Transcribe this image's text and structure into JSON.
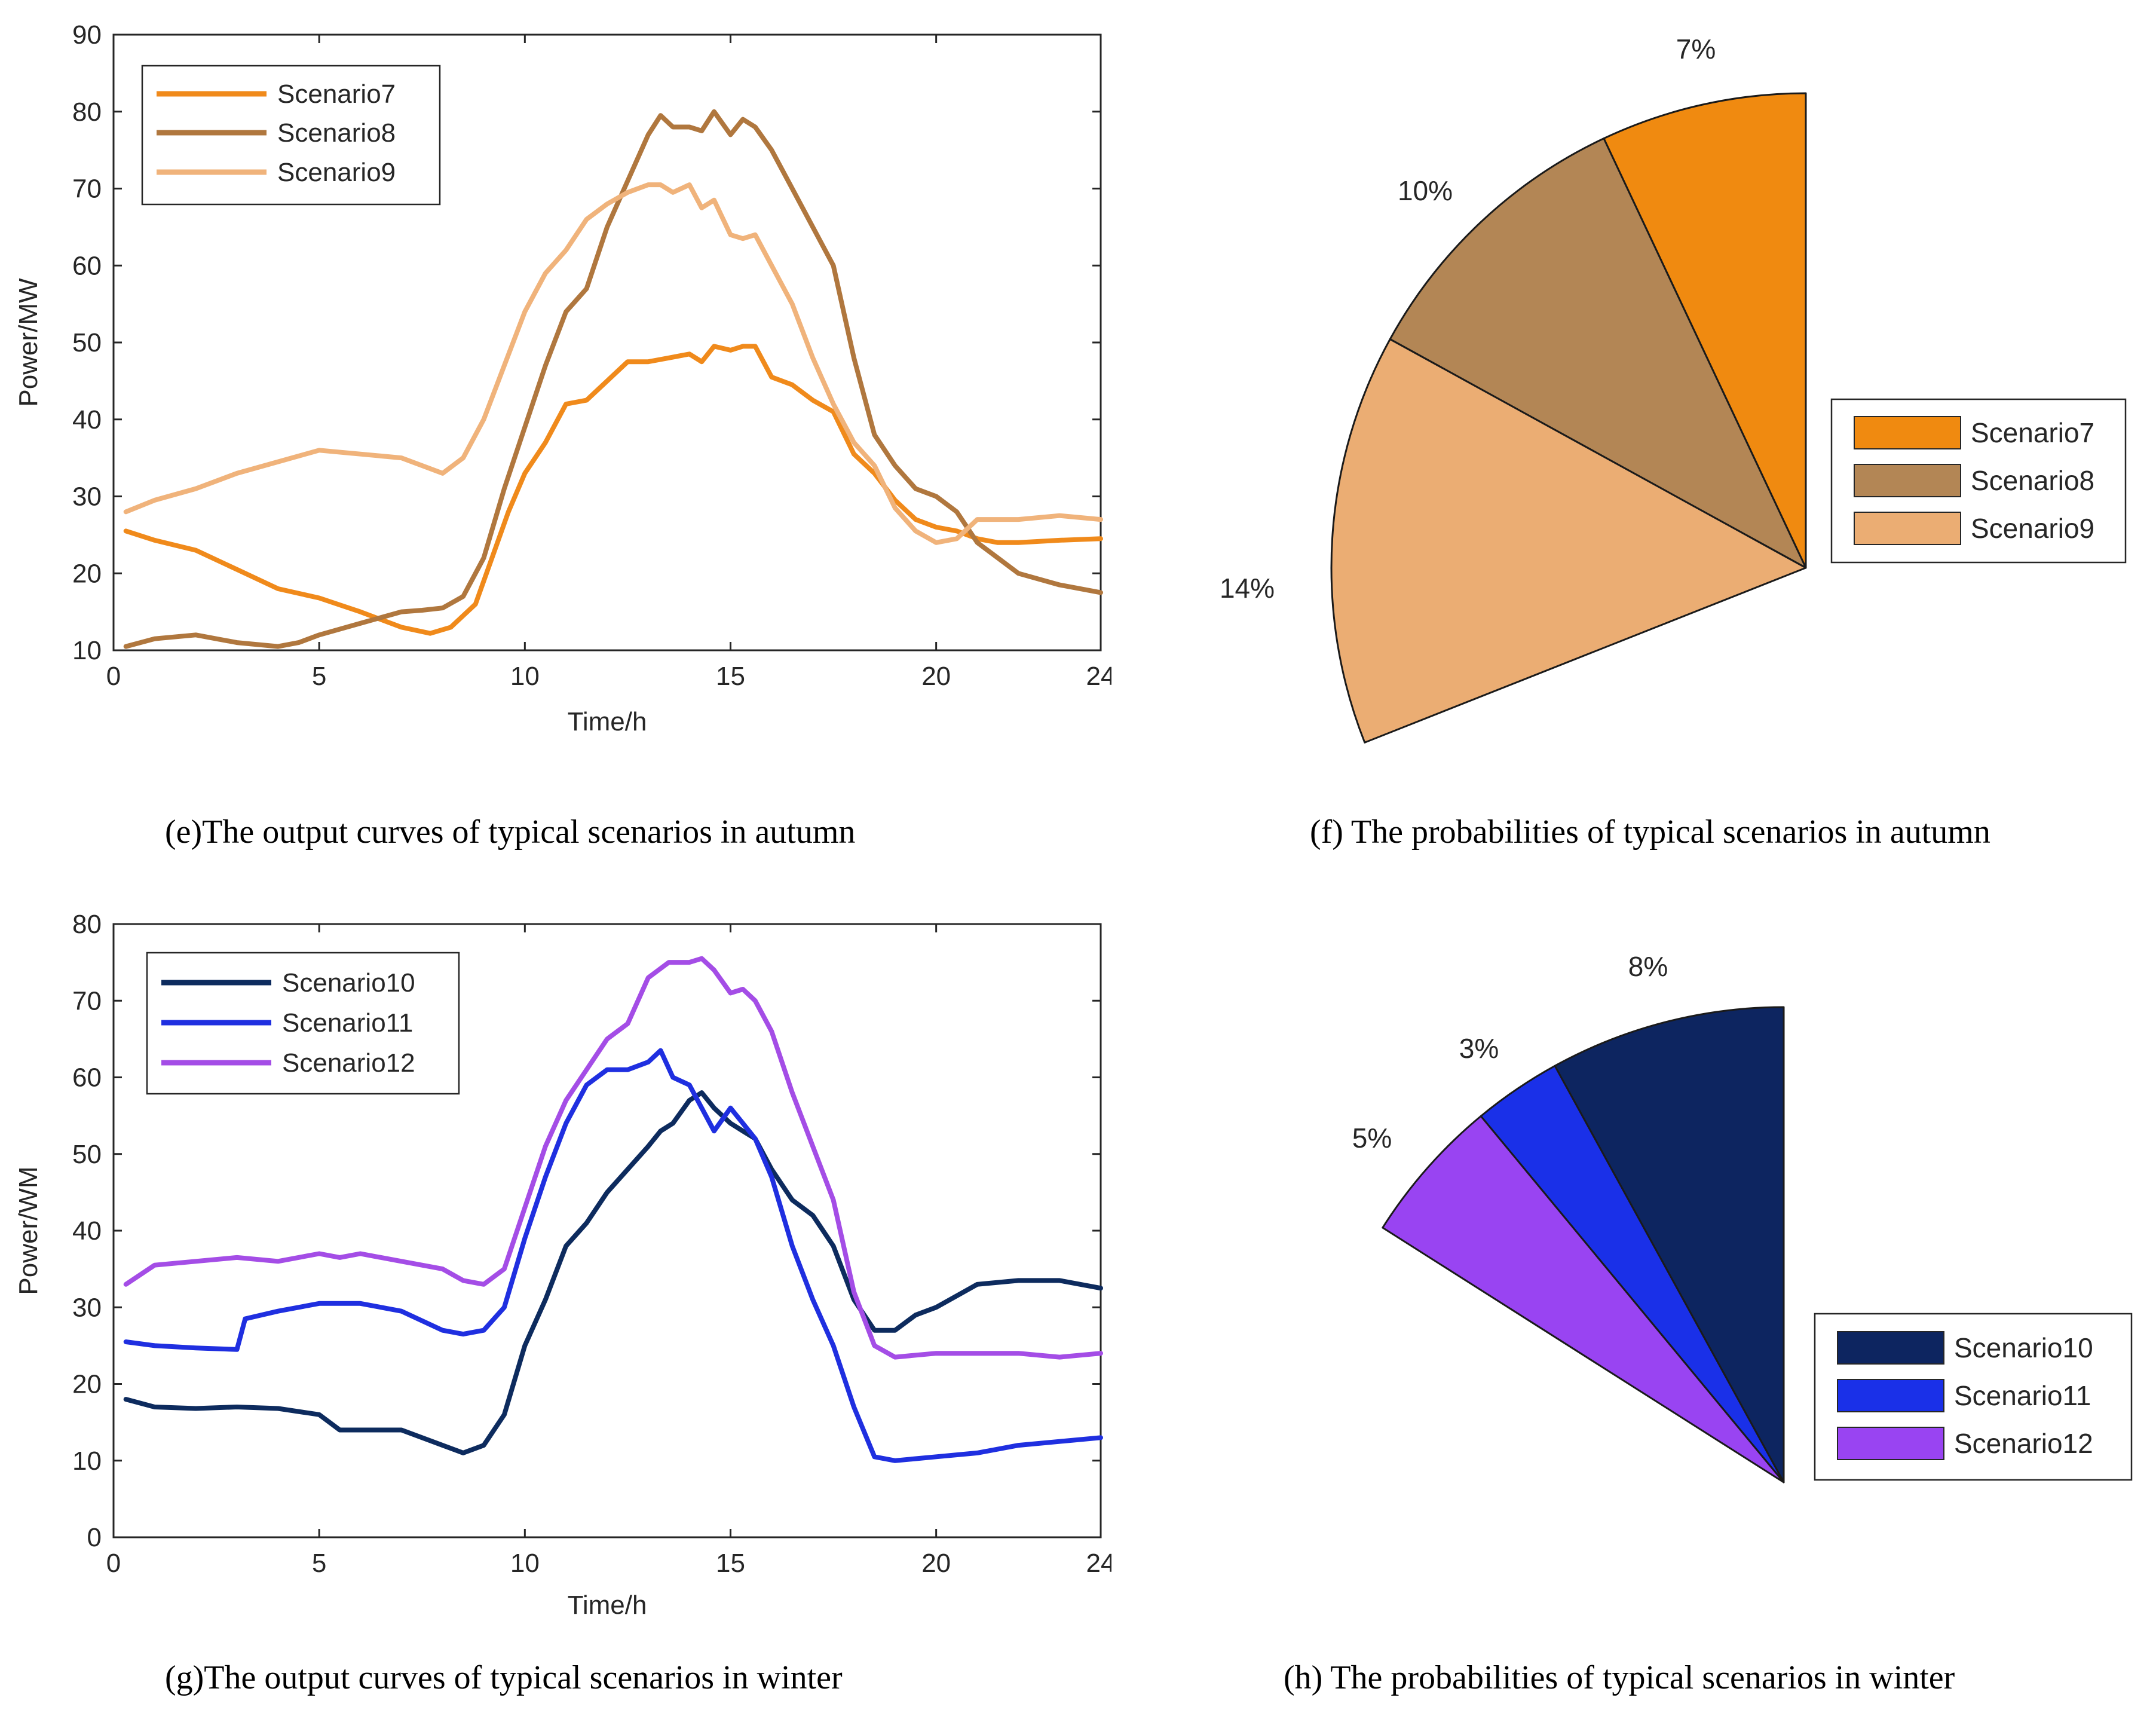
{
  "chart_data": [
    {
      "id": "e",
      "type": "line",
      "caption": "(e)The output curves of typical scenarios in autumn",
      "xlabel": "Time/h",
      "ylabel": "Power/MW",
      "xlim": [
        0,
        24
      ],
      "ylim": [
        10,
        90
      ],
      "xticks": [
        0,
        5,
        10,
        15,
        20,
        24
      ],
      "yticks": [
        10,
        20,
        30,
        40,
        50,
        60,
        70,
        80,
        90
      ],
      "series": [
        {
          "name": "Scenario7",
          "color": "#f08a1b",
          "x": [
            0.3,
            1,
            2,
            3,
            4,
            5,
            6,
            7,
            7.7,
            8.2,
            8.8,
            9.2,
            9.6,
            10,
            10.5,
            11,
            11.5,
            12,
            12.5,
            13,
            13.5,
            14,
            14.3,
            14.6,
            15,
            15.3,
            15.6,
            16,
            16.5,
            17,
            17.5,
            18,
            18.5,
            19,
            19.5,
            20,
            20.5,
            21,
            21.5,
            22,
            23,
            24
          ],
          "y": [
            25.5,
            24.3,
            23,
            20.5,
            18,
            16.8,
            15,
            13,
            12.2,
            13,
            16,
            22,
            28,
            33,
            37,
            42,
            42.5,
            45,
            47.5,
            47.5,
            48,
            48.5,
            47.5,
            49.5,
            49,
            49.5,
            49.5,
            45.5,
            44.5,
            42.5,
            41,
            35.5,
            33,
            29.5,
            27,
            26,
            25.5,
            24.5,
            24,
            24,
            24.3,
            24.5
          ]
        },
        {
          "name": "Scenario8",
          "color": "#b0773e",
          "x": [
            0.3,
            1,
            2,
            3,
            4,
            4.5,
            5,
            6,
            7,
            7.5,
            8,
            8.5,
            9,
            9.5,
            10,
            10.5,
            11,
            11.5,
            12,
            12.5,
            13,
            13.3,
            13.6,
            14,
            14.3,
            14.6,
            15,
            15.3,
            15.6,
            16,
            16.5,
            17,
            17.5,
            18,
            18.5,
            19,
            19.5,
            20,
            20.5,
            21,
            21.5,
            22,
            23,
            24
          ],
          "y": [
            10.5,
            11.5,
            12,
            11,
            10.5,
            11,
            12,
            13.5,
            15,
            15.2,
            15.5,
            17,
            22,
            31,
            39,
            47,
            54,
            57,
            65,
            71,
            77,
            79.5,
            78,
            78,
            77.5,
            80,
            77,
            79,
            78,
            75,
            70,
            65,
            60,
            48,
            38,
            34,
            31,
            30,
            28,
            24,
            22,
            20,
            18.5,
            17.5
          ]
        },
        {
          "name": "Scenario9",
          "color": "#f0b37b",
          "x": [
            0.3,
            1,
            2,
            3,
            4,
            5,
            6,
            7,
            7.5,
            8,
            8.5,
            9,
            9.5,
            10,
            10.5,
            11,
            11.5,
            12,
            12.5,
            13,
            13.3,
            13.6,
            14,
            14.3,
            14.6,
            15,
            15.3,
            15.6,
            16,
            16.5,
            17,
            17.5,
            18,
            18.5,
            19,
            19.5,
            20,
            20.5,
            21,
            22,
            23,
            24
          ],
          "y": [
            28,
            29.5,
            31,
            33,
            34.5,
            36,
            35.5,
            35,
            34,
            33,
            35,
            40,
            47,
            54,
            59,
            62,
            66,
            68,
            69.5,
            70.5,
            70.5,
            69.5,
            70.5,
            67.5,
            68.5,
            64,
            63.5,
            64,
            60,
            55,
            48,
            42,
            37,
            34,
            28.5,
            25.5,
            24,
            24.5,
            27,
            27,
            27.5,
            27
          ]
        }
      ]
    },
    {
      "id": "f",
      "type": "pie",
      "caption": "(f) The probabilities of typical scenarios in  autumn",
      "slices": [
        {
          "name": "Scenario7",
          "value": 7,
          "label": "7%",
          "color": "#f08a10"
        },
        {
          "name": "Scenario8",
          "value": 10,
          "label": "10%",
          "color": "#b38655"
        },
        {
          "name": "Scenario9",
          "value": 14,
          "label": "14%",
          "color": "#ebad73"
        }
      ],
      "legend": [
        "Scenario7",
        "Scenario8",
        "Scenario9"
      ]
    },
    {
      "id": "g",
      "type": "line",
      "caption": "(g)The output curves of typical scenarios in winter",
      "xlabel": "Time/h",
      "ylabel": "Power/WM",
      "xlim": [
        0,
        24
      ],
      "ylim": [
        0,
        80
      ],
      "xticks": [
        0,
        5,
        10,
        15,
        20,
        24
      ],
      "yticks": [
        0,
        10,
        20,
        30,
        40,
        50,
        60,
        70,
        80
      ],
      "series": [
        {
          "name": "Scenario10",
          "color": "#0d2b5e",
          "x": [
            0.3,
            1,
            2,
            3,
            4,
            5,
            5.5,
            6,
            7,
            8,
            8.5,
            9,
            9.5,
            10,
            10.5,
            11,
            11.5,
            12,
            12.5,
            13,
            13.3,
            13.6,
            14,
            14.3,
            14.6,
            15,
            15.3,
            15.6,
            16,
            16.5,
            17,
            17.5,
            18,
            18.5,
            19,
            19.5,
            20,
            21,
            22,
            23,
            24
          ],
          "y": [
            18,
            17,
            16.8,
            17,
            16.8,
            16,
            14,
            14,
            14,
            12,
            11,
            12,
            16,
            25,
            31,
            38,
            41,
            45,
            48,
            51,
            53,
            54,
            57,
            58,
            56,
            54,
            53,
            52,
            48,
            44,
            42,
            38,
            31,
            27,
            27,
            29,
            30,
            33,
            33.5,
            33.5,
            32.5
          ]
        },
        {
          "name": "Scenario11",
          "color": "#1f2fe0",
          "x": [
            0.3,
            1,
            2,
            3,
            3.2,
            4,
            5,
            6,
            7,
            8,
            8.5,
            9,
            9.5,
            10,
            10.5,
            11,
            11.5,
            12,
            12.5,
            13,
            13.3,
            13.6,
            14,
            14.3,
            14.6,
            15,
            15.3,
            15.6,
            16,
            16.5,
            17,
            17.5,
            18,
            18.5,
            19,
            20,
            21,
            22,
            23,
            24
          ],
          "y": [
            25.5,
            25,
            24.7,
            24.5,
            28.5,
            29.5,
            30.5,
            30.5,
            29.5,
            27,
            26.5,
            27,
            30,
            39,
            47,
            54,
            59,
            61,
            61,
            62,
            63.5,
            60,
            59,
            56,
            53,
            56,
            54,
            52,
            47,
            38,
            31,
            25,
            17,
            10.5,
            10,
            10.5,
            11,
            12,
            12.5,
            13
          ]
        },
        {
          "name": "Scenario12",
          "color": "#a44de6",
          "x": [
            0.3,
            1,
            2,
            3,
            4,
            5,
            5.5,
            6,
            7,
            8,
            8.5,
            9,
            9.5,
            10,
            10.5,
            11,
            11.5,
            12,
            12.5,
            13,
            13.5,
            14,
            14.3,
            14.6,
            15,
            15.3,
            15.6,
            16,
            16.5,
            17,
            17.5,
            18,
            18.5,
            19,
            20,
            21,
            22,
            23,
            24
          ],
          "y": [
            33,
            35.5,
            36,
            36.5,
            36,
            37,
            36.5,
            37,
            36,
            35,
            33.5,
            33,
            35,
            43,
            51,
            57,
            61,
            65,
            67,
            73,
            75,
            75,
            75.5,
            74,
            71,
            71.5,
            70,
            66,
            58,
            51,
            44,
            32,
            25,
            23.5,
            24,
            24,
            24,
            23.5,
            24
          ]
        }
      ]
    },
    {
      "id": "h",
      "type": "pie",
      "caption": "(h) The probabilities of typical scenarios in  winter",
      "slices": [
        {
          "name": "Scenario10",
          "value": 8,
          "label": "8%",
          "color": "#0d2560"
        },
        {
          "name": "Scenario11",
          "value": 3,
          "label": "3%",
          "color": "#1a30e8"
        },
        {
          "name": "Scenario12",
          "value": 5,
          "label": "5%",
          "color": "#9944f2"
        }
      ],
      "legend": [
        "Scenario10",
        "Scenario11",
        "Scenario12"
      ]
    }
  ]
}
